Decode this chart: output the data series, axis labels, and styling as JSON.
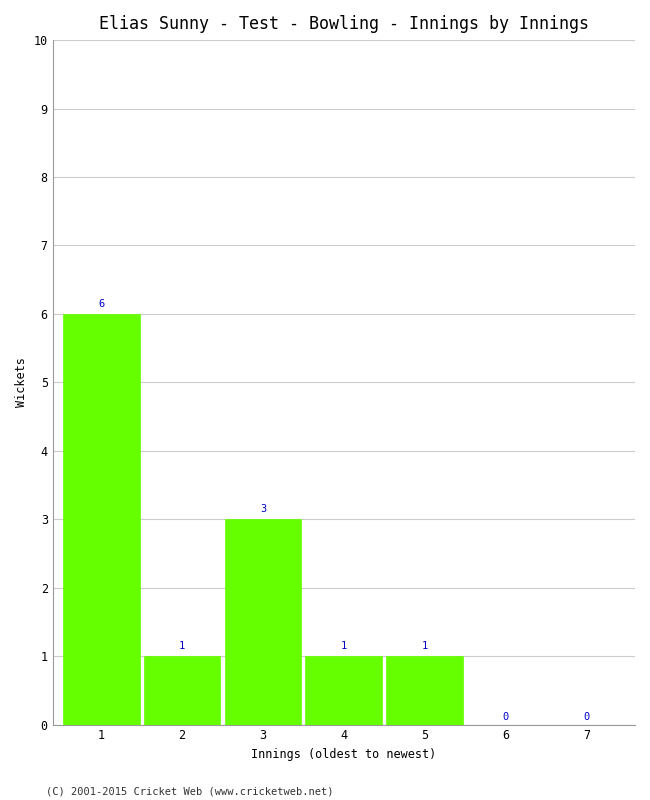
{
  "title": "Elias Sunny - Test - Bowling - Innings by Innings",
  "xlabel": "Innings (oldest to newest)",
  "ylabel": "Wickets",
  "categories": [
    "1",
    "2",
    "3",
    "4",
    "5",
    "6",
    "7"
  ],
  "values": [
    6,
    1,
    3,
    1,
    1,
    0,
    0
  ],
  "bar_color": "#66ff00",
  "bar_edge_color": "#66ff00",
  "ylim": [
    0,
    10
  ],
  "yticks": [
    0,
    1,
    2,
    3,
    4,
    5,
    6,
    7,
    8,
    9,
    10
  ],
  "label_color": "#0000cc",
  "label_fontsize": 7.5,
  "title_fontsize": 12,
  "axis_label_fontsize": 8.5,
  "tick_fontsize": 8.5,
  "footer": "(C) 2001-2015 Cricket Web (www.cricketweb.net)",
  "footer_fontsize": 7.5,
  "background_color": "#ffffff",
  "grid_color": "#cccccc"
}
